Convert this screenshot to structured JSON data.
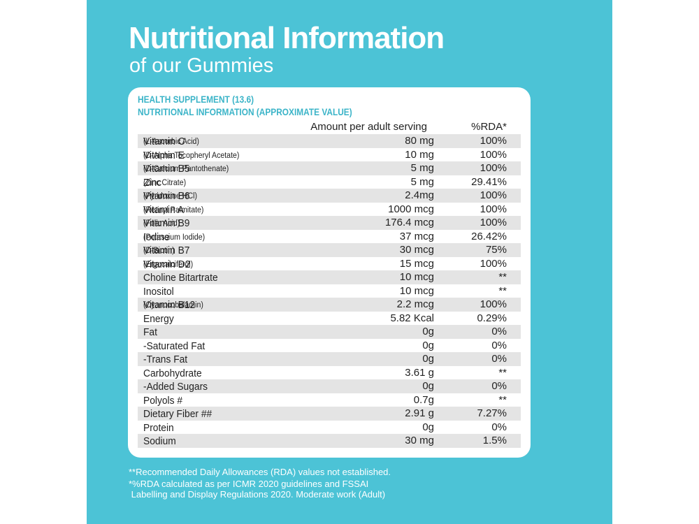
{
  "header": {
    "title": "Nutritional Information",
    "subtitle": "of our Gummies"
  },
  "table": {
    "heading": "HEALTH SUPPLEMENT (13.6)",
    "subheading": "NUTRITIONAL INFORMATION (APPROXIMATE VALUE)",
    "columns": [
      "Amount per adult serving",
      "%RDA*"
    ],
    "rows": [
      {
        "name": "Vitamin C",
        "detail": "(L-Ascorbic Acid)",
        "amount": "80 mg",
        "rda": "100%"
      },
      {
        "name": "Vitamin E",
        "detail": "(D-Alpha Tocopheryl Acetate)",
        "amount": "10 mg",
        "rda": "100%"
      },
      {
        "name": "Vitamin B5",
        "detail": "(D-Calcium Pantothenate)",
        "amount": "5 mg",
        "rda": "100%"
      },
      {
        "name": "Zinc",
        "detail": "(Zinc Citrate)",
        "amount": "5 mg",
        "rda": "29.41%"
      },
      {
        "name": "Vitamin B6",
        "detail": "(Pyridoxine HCl)",
        "amount": "2.4mg",
        "rda": "100%"
      },
      {
        "name": "Vitamin A",
        "detail": "(Retinyl Palmitate)",
        "amount": "1000 mcg",
        "rda": "100%"
      },
      {
        "name": "Vitamin B9",
        "detail": "(Folic Acid)",
        "amount": "176.4 mcg",
        "rda": "100%"
      },
      {
        "name": "Iodine",
        "detail": "(Potassium Iodide)",
        "amount": "37 mcg",
        "rda": "26.42%"
      },
      {
        "name": "Vitamin B7",
        "detail": "(D-Biotin)",
        "amount": "30 mcg",
        "rda": "75%"
      },
      {
        "name": "Vitamin D2",
        "detail": "(Ergocalciferol)",
        "amount": "15 mcg",
        "rda": "100%"
      },
      {
        "name": "Choline Bitartrate",
        "amount": "10 mcg",
        "rda": "**"
      },
      {
        "name": "Inositol",
        "amount": "10 mcg",
        "rda": "**"
      },
      {
        "name": "Vitamin B12",
        "detail": "(Cyanocobalamin)",
        "amount": "2.2 mcg",
        "rda": "100%"
      },
      {
        "name": "Energy",
        "amount": "5.82 Kcal",
        "rda": "0.29%"
      },
      {
        "name": "Fat",
        "amount": "0g",
        "rda": "0%"
      },
      {
        "name": "-Saturated Fat",
        "amount": "0g",
        "rda": "0%"
      },
      {
        "name": "-Trans Fat",
        "amount": "0g",
        "rda": "0%"
      },
      {
        "name": "Carbohydrate",
        "amount": "3.61 g",
        "rda": "**"
      },
      {
        "name": "-Added Sugars",
        "amount": "0g",
        "rda": "0%"
      },
      {
        "name": "Polyols #",
        "amount": "0.7g",
        "rda": "**"
      },
      {
        "name": "Dietary Fiber ##",
        "amount": "2.91 g",
        "rda": "7.27%"
      },
      {
        "name": "Protein",
        "amount": "0g",
        "rda": "0%"
      },
      {
        "name": "Sodium",
        "amount": "30 mg",
        "rda": "1.5%"
      }
    ]
  },
  "footnotes": [
    "**Recommended Daily Allowances (RDA) values not established.",
    "*%RDA calculated as per ICMR 2020 guidelines and FSSAI",
    " Labelling and Display Regulations 2020. Moderate work (Adult)"
  ]
}
